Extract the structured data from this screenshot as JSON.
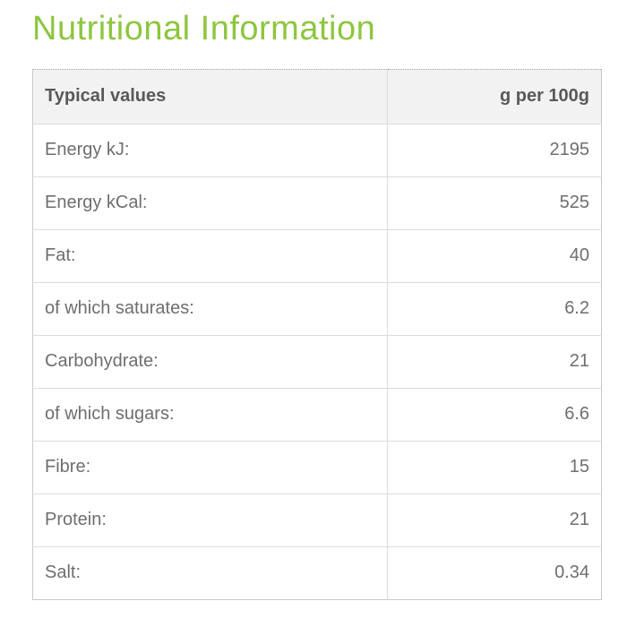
{
  "page": {
    "title": "Nutritional Information"
  },
  "table": {
    "headers": [
      "Typical values",
      "g per 100g"
    ],
    "rows": [
      {
        "label": "Energy kJ:",
        "value": "2195"
      },
      {
        "label": "Energy kCal:",
        "value": "525"
      },
      {
        "label": "Fat:",
        "value": "40"
      },
      {
        "label": "of which saturates:",
        "value": "6.2"
      },
      {
        "label": "Carbohydrate:",
        "value": "21"
      },
      {
        "label": "of which sugars:",
        "value": "6.6"
      },
      {
        "label": "Fibre:",
        "value": "15"
      },
      {
        "label": "Protein:",
        "value": "21"
      },
      {
        "label": "Salt:",
        "value": "0.34"
      }
    ]
  },
  "colors": {
    "accent_green": "#8dc63f",
    "header_text": "#58595b",
    "body_text": "#6d6e71",
    "header_bg": "#f2f2f2",
    "border_outer": "#c9c9c9",
    "border_inner": "#dcdcdc"
  }
}
